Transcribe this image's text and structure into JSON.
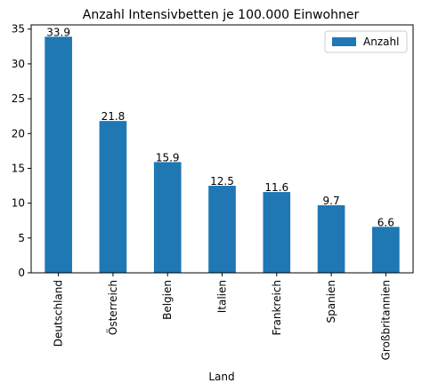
{
  "chart_data": {
    "type": "bar",
    "title": "Anzahl Intensivbetten je 100.000 Einwohner",
    "xlabel": "Land",
    "ylabel": "",
    "categories": [
      "Deutschland",
      "Österreich",
      "Belgien",
      "Italien",
      "Frankreich",
      "Spanien",
      "Großbritannien"
    ],
    "series": [
      {
        "name": "Anzahl",
        "values": [
          33.9,
          21.8,
          15.9,
          12.5,
          11.6,
          9.7,
          6.6
        ],
        "color": "#1f77b4"
      }
    ],
    "data_labels": [
      "33.9",
      "21.8",
      "15.9",
      "12.5",
      "11.6",
      "9.7",
      "6.6"
    ],
    "yticks": [
      0,
      5,
      10,
      15,
      20,
      25,
      30,
      35
    ],
    "ylim": [
      0,
      35.6
    ],
    "legend": {
      "position": "top-right"
    },
    "grid": false
  }
}
